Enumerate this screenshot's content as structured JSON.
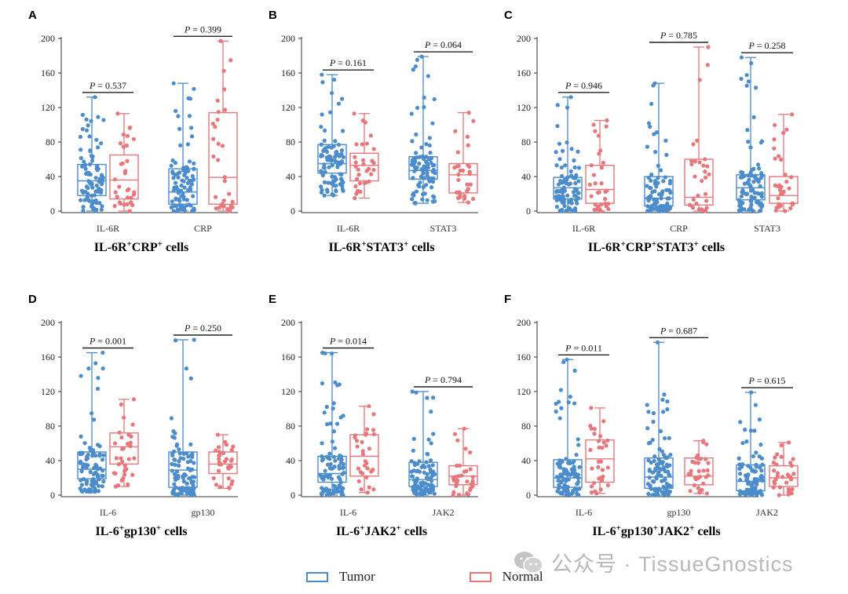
{
  "colors": {
    "tumor": "#4b8ccd",
    "normal": "#e8767a",
    "axis": "#333333"
  },
  "legend": {
    "tumor": "Tumor",
    "normal": "Normal"
  },
  "watermark": {
    "text": "公众号 · TissueGnostics",
    "icon": "wechat-icon"
  },
  "chart_data": [
    {
      "type": "box",
      "panel": "A",
      "title": "IL-6R⁺CRP⁺ cells",
      "title_parts": [
        [
          "IL-6R",
          ""
        ],
        [
          "+",
          "sup"
        ],
        [
          "CRP",
          ""
        ],
        [
          "+",
          "sup"
        ],
        [
          " cells",
          ""
        ]
      ],
      "ylim": [
        0,
        200
      ],
      "yticks": [
        0,
        40,
        80,
        120,
        160,
        200
      ],
      "groups": [
        {
          "label": "IL-6R",
          "p": "0.537",
          "tumor": {
            "min": 0,
            "q1": 18,
            "median": 35,
            "q3": 54,
            "max": 132,
            "n": 90
          },
          "normal": {
            "min": 0,
            "q1": 14,
            "median": 36,
            "q3": 65,
            "max": 113,
            "n": 32
          }
        },
        {
          "label": "CRP",
          "p": "0.399",
          "tumor": {
            "min": 0,
            "q1": 8,
            "median": 22,
            "q3": 49,
            "max": 148,
            "n": 95
          },
          "normal": {
            "min": 0,
            "q1": 8,
            "median": 39,
            "q3": 114,
            "max": 197,
            "n": 32
          }
        }
      ]
    },
    {
      "type": "box",
      "panel": "B",
      "title": "IL-6R⁺STAT3⁺ cells",
      "title_parts": [
        [
          "IL-6R",
          ""
        ],
        [
          "+",
          "sup"
        ],
        [
          "STAT3",
          ""
        ],
        [
          "+",
          "sup"
        ],
        [
          " cells",
          ""
        ]
      ],
      "ylim": [
        0,
        200
      ],
      "yticks": [
        0,
        40,
        80,
        120,
        160,
        200
      ],
      "groups": [
        {
          "label": "IL-6R",
          "p": "0.161",
          "tumor": {
            "min": 18,
            "q1": 44,
            "median": 55,
            "q3": 77,
            "max": 158,
            "n": 90
          },
          "normal": {
            "min": 15,
            "q1": 35,
            "median": 53,
            "q3": 67,
            "max": 113,
            "n": 32
          }
        },
        {
          "label": "STAT3",
          "p": "0.064",
          "tumor": {
            "min": 9,
            "q1": 37,
            "median": 47,
            "q3": 63,
            "max": 179,
            "n": 95
          },
          "normal": {
            "min": 10,
            "q1": 21,
            "median": 42,
            "q3": 55,
            "max": 114,
            "n": 32
          }
        }
      ]
    },
    {
      "type": "box",
      "panel": "C",
      "title": "IL-6R⁺CRP⁺STAT3⁺ cells",
      "title_parts": [
        [
          "IL-6R",
          ""
        ],
        [
          "+",
          "sup"
        ],
        [
          "CRP",
          ""
        ],
        [
          "+",
          "sup"
        ],
        [
          "STAT3",
          ""
        ],
        [
          "+",
          "sup"
        ],
        [
          " cells",
          ""
        ]
      ],
      "ylim": [
        0,
        200
      ],
      "yticks": [
        0,
        40,
        80,
        120,
        160,
        200
      ],
      "groups": [
        {
          "label": "IL-6R",
          "p": "0.946",
          "tumor": {
            "min": 0,
            "q1": 14,
            "median": 27,
            "q3": 39,
            "max": 132,
            "n": 90
          },
          "normal": {
            "min": 0,
            "q1": 9,
            "median": 25,
            "q3": 53,
            "max": 105,
            "n": 32
          }
        },
        {
          "label": "CRP",
          "p": "0.785",
          "tumor": {
            "min": 0,
            "q1": 6,
            "median": 15,
            "q3": 40,
            "max": 148,
            "n": 95
          },
          "normal": {
            "min": 0,
            "q1": 7,
            "median": 16,
            "q3": 60,
            "max": 190,
            "n": 32
          }
        },
        {
          "label": "STAT3",
          "p": "0.258",
          "tumor": {
            "min": 0,
            "q1": 13,
            "median": 27,
            "q3": 42,
            "max": 178,
            "n": 90
          },
          "normal": {
            "min": 0,
            "q1": 9,
            "median": 18,
            "q3": 40,
            "max": 112,
            "n": 32
          }
        }
      ]
    },
    {
      "type": "box",
      "panel": "D",
      "title": "IL-6⁺gp130⁺ cells",
      "title_parts": [
        [
          "IL-6",
          ""
        ],
        [
          "+",
          "sup"
        ],
        [
          "gp130",
          ""
        ],
        [
          "+",
          "sup"
        ],
        [
          " cells",
          ""
        ]
      ],
      "ylim": [
        0,
        200
      ],
      "yticks": [
        0,
        40,
        80,
        120,
        160,
        200
      ],
      "groups": [
        {
          "label": "IL-6",
          "p": "0.001",
          "tumor": {
            "min": 4,
            "q1": 19,
            "median": 30,
            "q3": 50,
            "max": 165,
            "n": 90
          },
          "normal": {
            "min": 10,
            "q1": 36,
            "median": 56,
            "q3": 72,
            "max": 111,
            "n": 32
          }
        },
        {
          "label": "gp130",
          "p": "0.250",
          "tumor": {
            "min": 0,
            "q1": 9,
            "median": 29,
            "q3": 50,
            "max": 180,
            "n": 95
          },
          "normal": {
            "min": 8,
            "q1": 25,
            "median": 36,
            "q3": 50,
            "max": 70,
            "n": 32
          }
        }
      ]
    },
    {
      "type": "box",
      "panel": "E",
      "title": "IL-6⁺JAK2⁺ cells",
      "title_parts": [
        [
          "IL-6",
          ""
        ],
        [
          "+",
          "sup"
        ],
        [
          "JAK2",
          ""
        ],
        [
          "+",
          "sup"
        ],
        [
          " cells",
          ""
        ]
      ],
      "ylim": [
        0,
        200
      ],
      "yticks": [
        0,
        40,
        80,
        120,
        160,
        200
      ],
      "groups": [
        {
          "label": "IL-6",
          "p": "0.014",
          "tumor": {
            "min": 0,
            "q1": 15,
            "median": 25,
            "q3": 45,
            "max": 165,
            "n": 90
          },
          "normal": {
            "min": 3,
            "q1": 22,
            "median": 45,
            "q3": 70,
            "max": 103,
            "n": 32
          }
        },
        {
          "label": "JAK2",
          "p": "0.794",
          "tumor": {
            "min": 0,
            "q1": 10,
            "median": 18,
            "q3": 38,
            "max": 120,
            "n": 95
          },
          "normal": {
            "min": 0,
            "q1": 12,
            "median": 22,
            "q3": 34,
            "max": 77,
            "n": 32
          }
        }
      ]
    },
    {
      "type": "box",
      "panel": "F",
      "title": "IL-6⁺gp130⁺JAK2⁺ cells",
      "title_parts": [
        [
          "IL-6",
          ""
        ],
        [
          "+",
          "sup"
        ],
        [
          "gp130",
          ""
        ],
        [
          "+",
          "sup"
        ],
        [
          "JAK2",
          ""
        ],
        [
          "+",
          "sup"
        ],
        [
          " cells",
          ""
        ]
      ],
      "ylim": [
        0,
        200
      ],
      "yticks": [
        0,
        40,
        80,
        120,
        160,
        200
      ],
      "groups": [
        {
          "label": "IL-6",
          "p": "0.011",
          "tumor": {
            "min": 0,
            "q1": 9,
            "median": 20,
            "q3": 41,
            "max": 157,
            "n": 90
          },
          "normal": {
            "min": 2,
            "q1": 15,
            "median": 42,
            "q3": 64,
            "max": 101,
            "n": 32
          }
        },
        {
          "label": "gp130",
          "p": "0.687",
          "tumor": {
            "min": 0,
            "q1": 8,
            "median": 21,
            "q3": 43,
            "max": 177,
            "n": 95
          },
          "normal": {
            "min": 2,
            "q1": 12,
            "median": 22,
            "q3": 43,
            "max": 63,
            "n": 32
          }
        },
        {
          "label": "JAK2",
          "p": "0.615",
          "tumor": {
            "min": 0,
            "q1": 5,
            "median": 16,
            "q3": 35,
            "max": 119,
            "n": 90
          },
          "normal": {
            "min": 0,
            "q1": 10,
            "median": 20,
            "q3": 34,
            "max": 61,
            "n": 32
          }
        }
      ]
    }
  ]
}
